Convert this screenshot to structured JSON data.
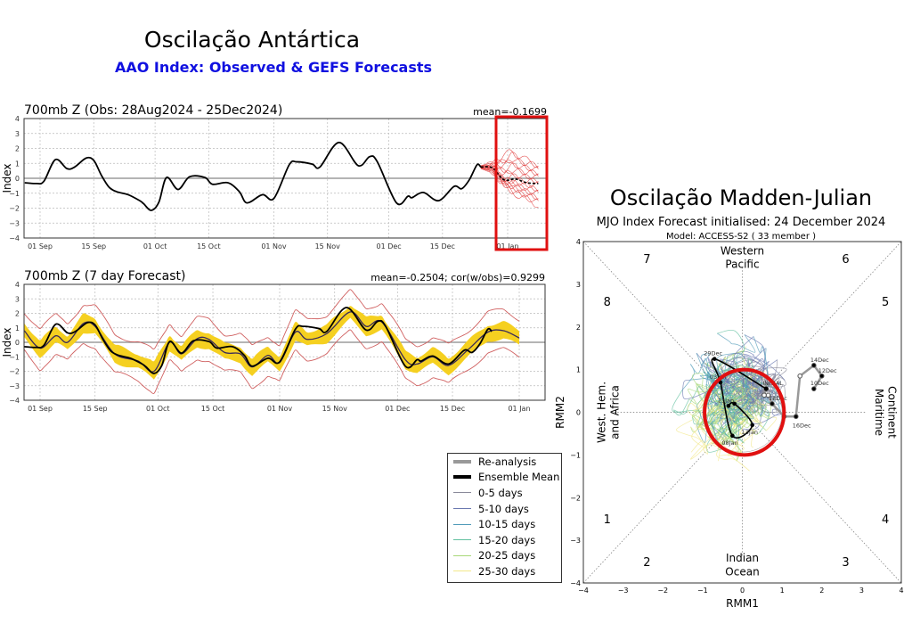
{
  "aao": {
    "title": "Oscilação Antártica",
    "subtitle": "AAO Index: Observed & GEFS Forecasts",
    "subtitle_color": "#1010e0",
    "highlight_color": "#e01010"
  },
  "mjo": {
    "title": "Oscilação Madden-Julian",
    "subtitle": "MJO Index Forecast initialised:  24  December 2024",
    "model": "Model: ACCESS-S2 ( 33 member )"
  },
  "chart_data": [
    {
      "type": "line",
      "title": "700mb Z (Obs: 28Aug2024 - 25Dec2024)",
      "annotation": "mean=-0.1699",
      "ylabel": "Index",
      "ylim": [
        -4,
        4
      ],
      "yticks": [
        "4",
        "3",
        "2",
        "1",
        "0",
        "−1",
        "−2",
        "−3",
        "−4"
      ],
      "xticks": [
        {
          "date": "2024-09-01",
          "label": "01 Sep"
        },
        {
          "date": "2024-09-15",
          "label": "15 Sep"
        },
        {
          "date": "2024-10-01",
          "label": "01 Oct"
        },
        {
          "date": "2024-10-15",
          "label": "15 Oct"
        },
        {
          "date": "2024-11-01",
          "label": "01 Nov"
        },
        {
          "date": "2024-11-15",
          "label": "15 Nov"
        },
        {
          "date": "2024-12-01",
          "label": "01 Dec"
        },
        {
          "date": "2024-12-15",
          "label": "15 Dec"
        },
        {
          "date": "2025-01-01",
          "label": "01 Jan"
        }
      ],
      "xlim": [
        "2024-08-28",
        "2025-01-10"
      ],
      "grid": true,
      "observed": [
        [
          "2024-08-28",
          -0.3
        ],
        [
          "2024-08-31",
          -0.35
        ],
        [
          "2024-09-02",
          -0.2
        ],
        [
          "2024-09-05",
          1.25
        ],
        [
          "2024-09-08",
          0.65
        ],
        [
          "2024-09-10",
          0.75
        ],
        [
          "2024-09-13",
          1.35
        ],
        [
          "2024-09-15",
          1.2
        ],
        [
          "2024-09-17",
          0.2
        ],
        [
          "2024-09-19",
          -0.6
        ],
        [
          "2024-09-21",
          -0.9
        ],
        [
          "2024-09-24",
          -1.1
        ],
        [
          "2024-09-27",
          -1.5
        ],
        [
          "2024-09-28",
          -1.7
        ],
        [
          "2024-09-30",
          -2.15
        ],
        [
          "2024-10-02",
          -1.6
        ],
        [
          "2024-10-04",
          0.05
        ],
        [
          "2024-10-07",
          -0.75
        ],
        [
          "2024-10-10",
          0.1
        ],
        [
          "2024-10-14",
          0.05
        ],
        [
          "2024-10-16",
          -0.4
        ],
        [
          "2024-10-20",
          -0.3
        ],
        [
          "2024-10-23",
          -0.9
        ],
        [
          "2024-10-25",
          -1.65
        ],
        [
          "2024-10-29",
          -1.1
        ],
        [
          "2024-11-01",
          -1.35
        ],
        [
          "2024-11-05",
          0.9
        ],
        [
          "2024-11-07",
          1.1
        ],
        [
          "2024-11-11",
          0.95
        ],
        [
          "2024-11-13",
          0.75
        ],
        [
          "2024-11-18",
          2.4
        ],
        [
          "2024-11-23",
          0.85
        ],
        [
          "2024-11-26",
          1.45
        ],
        [
          "2024-11-28",
          1.1
        ],
        [
          "2024-12-03",
          -1.65
        ],
        [
          "2024-12-06",
          -1.2
        ],
        [
          "2024-12-07",
          -1.3
        ],
        [
          "2024-12-10",
          -0.95
        ],
        [
          "2024-12-14",
          -1.5
        ],
        [
          "2024-12-18",
          -0.55
        ],
        [
          "2024-12-20",
          -0.7
        ],
        [
          "2024-12-22",
          -0.1
        ],
        [
          "2024-12-24",
          0.9
        ],
        [
          "2024-12-25",
          0.75
        ]
      ],
      "forecast_mean": [
        [
          "2024-12-25",
          0.75
        ],
        [
          "2024-12-28",
          0.7
        ],
        [
          "2024-12-31",
          -0.1
        ],
        [
          "2025-01-03",
          -0.05
        ],
        [
          "2025-01-06",
          -0.3
        ],
        [
          "2025-01-09",
          -0.35
        ]
      ],
      "forecast_members_range": {
        "upper": [
          [
            "2024-12-25",
            0.85
          ],
          [
            "2024-12-28",
            1.0
          ],
          [
            "2025-01-02",
            1.8
          ],
          [
            "2025-01-06",
            1.2
          ],
          [
            "2025-01-09",
            0.9
          ]
        ],
        "lower": [
          [
            "2024-12-25",
            0.65
          ],
          [
            "2024-12-28",
            0.4
          ],
          [
            "2025-01-02",
            -0.9
          ],
          [
            "2025-01-06",
            -1.4
          ],
          [
            "2025-01-09",
            -1.8
          ]
        ]
      },
      "colors": {
        "observed": "#000000",
        "members": "#e03030"
      }
    },
    {
      "type": "line",
      "title": "700mb Z (7 day Forecast)",
      "annotation": "mean=-0.2504; cor(w/obs)=0.9299",
      "ylabel": "Index",
      "ylim": [
        -4,
        4
      ],
      "yticks": [
        "4",
        "3",
        "2",
        "1",
        "0",
        "−1",
        "−2",
        "−3",
        "−4"
      ],
      "xticks": [
        {
          "date": "2024-09-01",
          "label": "01 Sep"
        },
        {
          "date": "2024-09-15",
          "label": "15 Sep"
        },
        {
          "date": "2024-10-01",
          "label": "01 Oct"
        },
        {
          "date": "2024-10-15",
          "label": "15 Oct"
        },
        {
          "date": "2024-11-01",
          "label": "01 Nov"
        },
        {
          "date": "2024-11-15",
          "label": "15 Nov"
        },
        {
          "date": "2024-12-01",
          "label": "01 Dec"
        },
        {
          "date": "2024-12-15",
          "label": "15 Dec"
        },
        {
          "date": "2025-01-01",
          "label": "01 Jan"
        }
      ],
      "xlim": [
        "2024-08-28",
        "2025-01-07"
      ],
      "grid": true,
      "forecast_mean": [
        [
          "2024-08-28",
          0.8
        ],
        [
          "2024-09-01",
          -0.4
        ],
        [
          "2024-09-05",
          0.45
        ],
        [
          "2024-09-08",
          0.0
        ],
        [
          "2024-09-12",
          1.3
        ],
        [
          "2024-09-15",
          1.1
        ],
        [
          "2024-09-20",
          -0.8
        ],
        [
          "2024-09-26",
          -1.3
        ],
        [
          "2024-09-30",
          -2.0
        ],
        [
          "2024-10-04",
          0.0
        ],
        [
          "2024-10-07",
          -0.8
        ],
        [
          "2024-10-11",
          0.25
        ],
        [
          "2024-10-14",
          0.2
        ],
        [
          "2024-10-18",
          -0.7
        ],
        [
          "2024-10-22",
          -0.8
        ],
        [
          "2024-10-25",
          -1.7
        ],
        [
          "2024-10-29",
          -0.9
        ],
        [
          "2024-11-01",
          -1.4
        ],
        [
          "2024-11-05",
          0.7
        ],
        [
          "2024-11-08",
          0.2
        ],
        [
          "2024-11-13",
          0.6
        ],
        [
          "2024-11-19",
          2.1
        ],
        [
          "2024-11-23",
          1.1
        ],
        [
          "2024-11-27",
          1.4
        ],
        [
          "2024-12-03",
          -1.2
        ],
        [
          "2024-12-06",
          -1.5
        ],
        [
          "2024-12-10",
          -1.0
        ],
        [
          "2024-12-14",
          -1.6
        ],
        [
          "2024-12-19",
          -0.5
        ],
        [
          "2024-12-24",
          0.7
        ],
        [
          "2024-12-28",
          0.8
        ],
        [
          "2025-01-01",
          0.3
        ]
      ],
      "band_halfwidth": 0.55,
      "extreme_halfwidth": 1.35,
      "colors": {
        "observed": "#000000",
        "forecast_mean": "#3a2a5a",
        "band": "#f5d020",
        "extremes": "#d06060"
      }
    },
    {
      "type": "scatter",
      "title": "MJO Index Forecast initialised:  24  December 2024",
      "xlabel": "RMM1",
      "ylabel": "RMM2",
      "xlim": [
        -4,
        4
      ],
      "ylim": [
        -4,
        4
      ],
      "ticks": [
        "−4",
        "−3",
        "−2",
        "−1",
        "0",
        "1",
        "2",
        "3",
        "4"
      ],
      "phases": [
        {
          "label": "7",
          "x": -2.4,
          "y": 3.6
        },
        {
          "label": "6",
          "x": 2.6,
          "y": 3.6
        },
        {
          "label": "8",
          "x": -3.4,
          "y": 2.6
        },
        {
          "label": "5",
          "x": 3.6,
          "y": 2.6
        },
        {
          "label": "1",
          "x": -3.4,
          "y": -2.5
        },
        {
          "label": "4",
          "x": 3.6,
          "y": -2.5
        },
        {
          "label": "2",
          "x": -2.4,
          "y": -3.5
        },
        {
          "label": "3",
          "x": 2.6,
          "y": -3.5
        }
      ],
      "regions": {
        "top": [
          "Western",
          "Pacific"
        ],
        "bottom": [
          "Indian",
          "Ocean"
        ],
        "left": [
          "West. Hem.",
          "and Africa"
        ],
        "right": [
          "Maritime",
          "Continent"
        ]
      },
      "observed_track": [
        {
          "x": 1.8,
          "y": 0.55,
          "label": "10Dec"
        },
        {
          "x": 2.0,
          "y": 0.85,
          "label": "12Dec"
        },
        {
          "x": 1.8,
          "y": 1.1,
          "label": "14Dec"
        },
        {
          "x": 1.45,
          "y": 0.85,
          "label": ""
        },
        {
          "x": 1.35,
          "y": -0.1,
          "label": "16Dec"
        },
        {
          "x": 1.05,
          "y": -0.1,
          "label": ""
        },
        {
          "x": 0.75,
          "y": 0.2,
          "label": "18Dec"
        },
        {
          "x": 0.65,
          "y": 0.4,
          "label": ""
        },
        {
          "x": 0.55,
          "y": 0.4,
          "label": ""
        },
        {
          "x": 0.6,
          "y": 0.55,
          "label": "INITIAL"
        }
      ],
      "ensemble_mean_track": [
        {
          "x": 0.6,
          "y": 0.55,
          "label": ""
        },
        {
          "x": -0.7,
          "y": 1.25,
          "label": "29Dec"
        },
        {
          "x": -0.55,
          "y": 0.7,
          "label": "03Jan"
        },
        {
          "x": -0.25,
          "y": -0.55,
          "label": "08Jan"
        },
        {
          "x": 0.25,
          "y": -0.3,
          "label": "13Jan"
        },
        {
          "x": -0.2,
          "y": 0.2,
          "label": ""
        },
        {
          "x": -0.35,
          "y": 0.15,
          "label": "23Jan"
        }
      ],
      "highlight_circle": {
        "x": 0.05,
        "y": 0.0,
        "r": 1.0,
        "color": "#e01010"
      },
      "legend": [
        {
          "label": "Re-analysis",
          "color": "#999999",
          "width": 4
        },
        {
          "label": "Ensemble Mean",
          "color": "#000000",
          "width": 4
        },
        {
          "label": "0-5 days",
          "color": "#8a8a9a",
          "width": 1.5
        },
        {
          "label": "5-10 days",
          "color": "#6a78b0",
          "width": 1.5
        },
        {
          "label": "10-15 days",
          "color": "#4e9ab8",
          "width": 1.5
        },
        {
          "label": "15-20 days",
          "color": "#62c0a0",
          "width": 1.5
        },
        {
          "label": "20-25 days",
          "color": "#a8d878",
          "width": 1.5
        },
        {
          "label": "25-30 days",
          "color": "#f2e88a",
          "width": 1.5
        }
      ],
      "members": 33
    }
  ]
}
